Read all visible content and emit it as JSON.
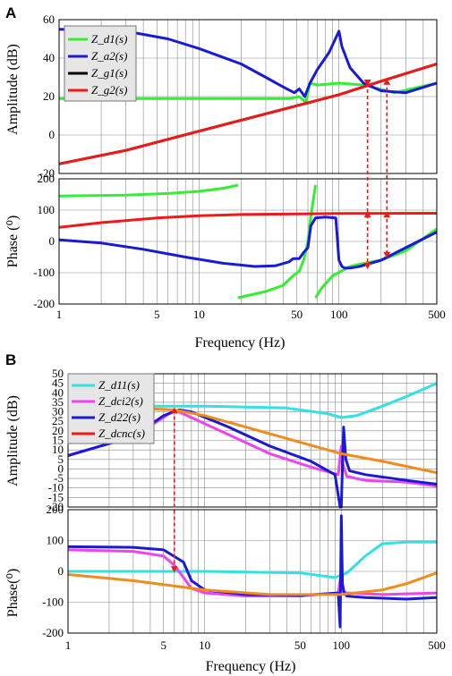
{
  "colors": {
    "green": "#33ee33",
    "blue": "#1a1ad6",
    "black": "#000000",
    "red": "#ee1a1a",
    "cyan": "#33e0e6",
    "magenta": "#ee44ee",
    "orange": "#f08c1e",
    "marker": "#ee1a1a"
  },
  "chart_data": [
    {
      "panel_label": "A",
      "type": "line",
      "xlabel": "Frequency (Hz)",
      "xscale": "log",
      "xlim": [
        1,
        500
      ],
      "x_ticks": [
        "1",
        "5",
        "10",
        "50",
        "100",
        "500"
      ],
      "grid": true,
      "legend_position": "top-left",
      "legend": [
        "Z_d1(s)",
        "Z_a2(s)",
        "Z_g1(s)",
        "Z_g2(s)"
      ],
      "subplots": [
        {
          "ylabel": "Amplitude (dB)",
          "ylim": [
            -20,
            60
          ],
          "y_ticks": [
            "-20",
            "0",
            "20",
            "40",
            "60"
          ],
          "series": [
            {
              "name": "Z_d1(s)",
              "color": "green",
              "x": [
                1,
                10,
                30,
                45,
                52,
                58,
                62,
                70,
                100,
                150,
                250,
                500
              ],
              "y": [
                19,
                19,
                19,
                19,
                20,
                17,
                27,
                26,
                27,
                26,
                22,
                27
              ]
            },
            {
              "name": "Z_a2(s)",
              "color": "blue",
              "x": [
                1,
                3,
                6,
                10,
                20,
                30,
                40,
                48,
                52,
                57,
                62,
                70,
                85,
                100,
                105,
                120,
                150,
                200,
                300,
                500
              ],
              "y": [
                55,
                54,
                50,
                45,
                37,
                30,
                25,
                22,
                24,
                20,
                27,
                34,
                43,
                54,
                46,
                35,
                27,
                23,
                22,
                27
              ]
            },
            {
              "name": "Z_g1(s)",
              "color": "black",
              "x": [
                1,
                3,
                10,
                30,
                100,
                200,
                500
              ],
              "y": [
                -15,
                -8,
                2,
                11,
                21,
                28,
                37
              ]
            },
            {
              "name": "Z_g2(s)",
              "color": "red",
              "x": [
                1,
                3,
                10,
                30,
                100,
                200,
                500
              ],
              "y": [
                -15,
                -8,
                2,
                11,
                21,
                28,
                37
              ]
            }
          ],
          "markers": [
            {
              "x": 160,
              "y": 27,
              "direction": "down"
            },
            {
              "x": 220,
              "y": 28,
              "direction": "up"
            }
          ]
        },
        {
          "ylabel": "Phase (⁰)",
          "ylim": [
            -200,
            200
          ],
          "y_ticks": [
            "-200",
            "-100",
            "0",
            "100",
            "200"
          ],
          "series": [
            {
              "name": "Z_d1(s) upper branch",
              "color": "green",
              "x": [
                1,
                3,
                6,
                10,
                15,
                19
              ],
              "y": [
                145,
                148,
                153,
                160,
                170,
                180
              ]
            },
            {
              "name": "Z_d1(s) lower branch",
              "color": "green",
              "x": [
                19,
                30,
                40,
                47,
                52,
                56,
                60,
                63,
                66,
                68
              ],
              "y": [
                -180,
                -160,
                -140,
                -110,
                -95,
                -60,
                0,
                80,
                140,
                180
              ]
            },
            {
              "name": "Z_d1(s) low tail",
              "color": "green",
              "x": [
                68,
                75,
                90,
                120,
                150,
                200,
                300,
                500
              ],
              "y": [
                -180,
                -150,
                -110,
                -80,
                -70,
                -60,
                -30,
                40
              ]
            },
            {
              "name": "Z_a2(s)",
              "color": "blue",
              "x": [
                1,
                2,
                4,
                8,
                15,
                25,
                35,
                44,
                47,
                52,
                56,
                60,
                63,
                68,
                80,
                95,
                100,
                105,
                110,
                120,
                140,
                200,
                300,
                500
              ],
              "y": [
                5,
                -5,
                -25,
                -50,
                -70,
                -80,
                -78,
                -65,
                -55,
                -55,
                -35,
                -20,
                50,
                75,
                78,
                75,
                -60,
                -80,
                -85,
                -85,
                -80,
                -60,
                -20,
                30
              ]
            },
            {
              "name": "Z_g2(s)",
              "color": "red",
              "x": [
                1,
                2,
                5,
                10,
                20,
                50,
                100,
                500
              ],
              "y": [
                45,
                60,
                75,
                82,
                86,
                88,
                89,
                90
              ]
            }
          ],
          "markers": [
            {
              "x": 160,
              "y": 88,
              "direction": "up"
            },
            {
              "x": 160,
              "y": -80,
              "direction": "down"
            },
            {
              "x": 220,
              "y": -45,
              "direction": "down"
            },
            {
              "x": 220,
              "y": 88,
              "direction": "up"
            }
          ]
        }
      ]
    },
    {
      "panel_label": "B",
      "type": "line",
      "xlabel": "Frequency (Hz)",
      "xscale": "log",
      "xlim": [
        1,
        500
      ],
      "x_ticks": [
        "1",
        "5",
        "10",
        "50",
        "100",
        "500"
      ],
      "grid": true,
      "legend_position": "top-left",
      "legend": [
        "Z_d11(s)",
        "Z_dci2(s)",
        "Z_d22(s)",
        "Z_dcnc(s)"
      ],
      "subplots": [
        {
          "ylabel": "Amplitude (dB)",
          "ylim": [
            -20,
            50
          ],
          "y_ticks": [
            "-20",
            "-15",
            "-10",
            "-5",
            "0",
            "5",
            "10",
            "15",
            "20",
            "25",
            "30",
            "35",
            "40",
            "45",
            "50"
          ],
          "series": [
            {
              "name": "Z_d11(s)",
              "color": "cyan",
              "x": [
                1,
                10,
                40,
                80,
                100,
                130,
                200,
                300,
                500
              ],
              "y": [
                33,
                33,
                32,
                29,
                27,
                28,
                33,
                38,
                45
              ]
            },
            {
              "name": "Z_dci2(s)",
              "color": "magenta",
              "x": [
                1,
                3,
                5,
                6,
                8,
                15,
                30,
                60,
                95,
                100,
                103,
                110,
                150,
                300,
                500
              ],
              "y": [
                7,
                17,
                27,
                31,
                27,
                18,
                8,
                1,
                -3,
                12,
                2,
                -4,
                -6,
                -7,
                -9
              ]
            },
            {
              "name": "Z_d22(s)",
              "color": "blue",
              "x": [
                1,
                3,
                5,
                6.5,
                8,
                15,
                30,
                60,
                90,
                98,
                100,
                104,
                108,
                115,
                150,
                300,
                500
              ],
              "y": [
                7,
                17,
                28,
                31,
                30,
                22,
                12,
                4,
                -3,
                -20,
                -20,
                22,
                5,
                -1,
                -3,
                -6,
                -8
              ]
            },
            {
              "name": "Z_dcnc(s)",
              "color": "orange",
              "x": [
                1,
                3,
                6,
                10,
                20,
                50,
                100,
                200,
                500
              ],
              "y": [
                32,
                32,
                31,
                28,
                22,
                14,
                8,
                4,
                -2
              ]
            }
          ],
          "markers": [
            {
              "x": 6,
              "y": 31,
              "direction": "up"
            }
          ]
        },
        {
          "ylabel": "Phase(⁰)",
          "ylim": [
            -200,
            200
          ],
          "y_ticks": [
            "-200",
            "-100",
            "0",
            "100",
            "200"
          ],
          "series": [
            {
              "name": "Z_d11(s)",
              "color": "cyan",
              "x": [
                1,
                10,
                50,
                90,
                110,
                150,
                200,
                300,
                500
              ],
              "y": [
                0,
                0,
                -5,
                -20,
                -5,
                50,
                90,
                95,
                95
              ]
            },
            {
              "name": "Z_dci2(s)",
              "color": "magenta",
              "x": [
                1,
                3,
                5,
                6,
                7,
                8,
                10,
                20,
                50,
                95,
                100,
                103,
                110,
                200,
                500
              ],
              "y": [
                70,
                65,
                50,
                20,
                -20,
                -55,
                -70,
                -80,
                -80,
                -70,
                -5,
                -65,
                -70,
                -75,
                -70
              ]
            },
            {
              "name": "Z_d22(s)",
              "color": "blue",
              "x": [
                1,
                3,
                5,
                7,
                8,
                10,
                20,
                50,
                95,
                98,
                100,
                102,
                105,
                110,
                150,
                300,
                500
              ],
              "y": [
                80,
                78,
                70,
                30,
                -30,
                -60,
                -75,
                -78,
                -70,
                -180,
                180,
                -40,
                -70,
                -80,
                -85,
                -90,
                -85
              ]
            },
            {
              "name": "Z_dcnc(s)",
              "color": "orange",
              "x": [
                1,
                3,
                10,
                30,
                100,
                200,
                300,
                500
              ],
              "y": [
                -10,
                -30,
                -60,
                -75,
                -75,
                -60,
                -40,
                -5
              ]
            }
          ],
          "markers": [
            {
              "x": 6,
              "y": 5,
              "direction": "down"
            }
          ]
        }
      ]
    }
  ],
  "labels": {
    "A_panel": "A",
    "A_amp_ylabel": "Amplitude (dB)",
    "A_phase_ylabel": "Phase (⁰)",
    "A_xlabel": "Frequency (Hz)",
    "B_panel": "B",
    "B_amp_ylabel": "Amplitude (dB)",
    "B_phase_ylabel": "Phase(⁰)",
    "B_xlabel": "Frequency (Hz)",
    "A_leg1": "Z_d1(s)",
    "A_leg2": "Z_a2(s)",
    "A_leg3": "Z_g1(s)",
    "A_leg4": "Z_g2(s)",
    "B_leg1": "Z_d11(s)",
    "B_leg2": "Z_dci2(s)",
    "B_leg3": "Z_d22(s)",
    "B_leg4": "Z_dcnc(s)"
  }
}
